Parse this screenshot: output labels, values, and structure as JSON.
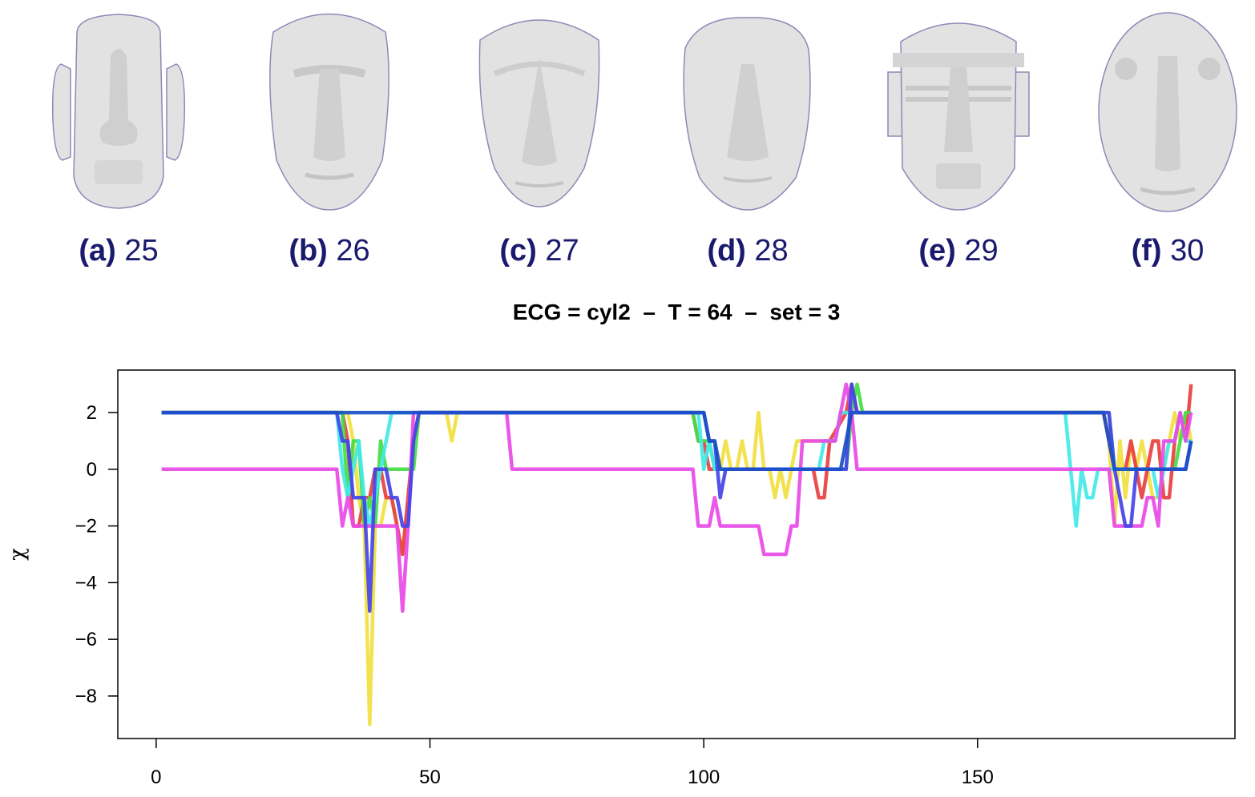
{
  "figure": {
    "faces": [
      {
        "letter": "(a)",
        "number": "25",
        "shape": "moai-ears"
      },
      {
        "letter": "(b)",
        "number": "26",
        "shape": "wide-brow"
      },
      {
        "letter": "(c)",
        "number": "27",
        "shape": "pointed-nose"
      },
      {
        "letter": "(d)",
        "number": "28",
        "shape": "rough-round"
      },
      {
        "letter": "(e)",
        "number": "29",
        "shape": "banded-ears"
      },
      {
        "letter": "(f)",
        "number": "30",
        "shape": "oval-knobs"
      }
    ],
    "face_color": "#e2e2e2",
    "caption_color": "#1a1a6e"
  },
  "chart_data": {
    "type": "line",
    "title": "ECG = cyl2  –  T = 64  –  set = 3",
    "xlabel": "",
    "ylabel": "χ",
    "xlim": [
      -7,
      197
    ],
    "ylim": [
      -9.5,
      3.5
    ],
    "xticks": [
      0,
      50,
      100,
      150
    ],
    "yticks": [
      2,
      0,
      -2,
      -4,
      -6,
      -8
    ],
    "xtick_labels": [
      "0",
      "50",
      "100",
      "150"
    ],
    "ytick_labels": [
      "2",
      "0",
      "−2",
      "−4",
      "−6",
      "−8"
    ],
    "grid": false,
    "legend": "none",
    "series": [
      {
        "color": "#f2e040",
        "points": [
          [
            1,
            2
          ],
          [
            34,
            2
          ],
          [
            35,
            2
          ],
          [
            36,
            1
          ],
          [
            37,
            -1
          ],
          [
            38,
            -2
          ],
          [
            39,
            -9
          ],
          [
            40,
            -2
          ],
          [
            41,
            -2
          ],
          [
            42,
            -1
          ],
          [
            43,
            -1
          ],
          [
            44,
            -2
          ],
          [
            45,
            -3
          ],
          [
            46,
            -1
          ],
          [
            47,
            1
          ],
          [
            48,
            2
          ],
          [
            52,
            2
          ],
          [
            53,
            2
          ],
          [
            54,
            1
          ],
          [
            55,
            2
          ],
          [
            100,
            2
          ],
          [
            101,
            1
          ],
          [
            102,
            1
          ],
          [
            103,
            0
          ],
          [
            104,
            1
          ],
          [
            105,
            0
          ],
          [
            106,
            0
          ],
          [
            107,
            1
          ],
          [
            108,
            0
          ],
          [
            109,
            0
          ],
          [
            110,
            2
          ],
          [
            111,
            0
          ],
          [
            112,
            0
          ],
          [
            113,
            -1
          ],
          [
            114,
            0
          ],
          [
            115,
            -1
          ],
          [
            116,
            0
          ],
          [
            117,
            1
          ],
          [
            124,
            1
          ],
          [
            125,
            2
          ],
          [
            126,
            2
          ],
          [
            127,
            2
          ],
          [
            128,
            2
          ],
          [
            129,
            2
          ],
          [
            173,
            2
          ],
          [
            174,
            1
          ],
          [
            175,
            -2
          ],
          [
            176,
            1
          ],
          [
            177,
            -1
          ],
          [
            178,
            1
          ],
          [
            179,
            0
          ],
          [
            180,
            1
          ],
          [
            181,
            0
          ],
          [
            182,
            -1
          ],
          [
            183,
            -1
          ],
          [
            184,
            0
          ],
          [
            185,
            1
          ],
          [
            186,
            2
          ],
          [
            187,
            1
          ],
          [
            188,
            2
          ],
          [
            189,
            1
          ]
        ]
      },
      {
        "color": "#e84040",
        "points": [
          [
            1,
            2
          ],
          [
            34,
            2
          ],
          [
            35,
            1
          ],
          [
            36,
            -2
          ],
          [
            37,
            -2
          ],
          [
            38,
            -1
          ],
          [
            39,
            -1
          ],
          [
            40,
            0
          ],
          [
            41,
            0
          ],
          [
            42,
            -1
          ],
          [
            43,
            -1
          ],
          [
            44,
            -2
          ],
          [
            45,
            -3
          ],
          [
            46,
            -1
          ],
          [
            47,
            1
          ],
          [
            48,
            2
          ],
          [
            98,
            2
          ],
          [
            99,
            1
          ],
          [
            100,
            1
          ],
          [
            101,
            0
          ],
          [
            102,
            0
          ],
          [
            103,
            0
          ],
          [
            120,
            0
          ],
          [
            121,
            -1
          ],
          [
            122,
            -1
          ],
          [
            123,
            1
          ],
          [
            126,
            2
          ],
          [
            127,
            3
          ],
          [
            128,
            2
          ],
          [
            129,
            2
          ],
          [
            173,
            2
          ],
          [
            174,
            1
          ],
          [
            175,
            0
          ],
          [
            176,
            0
          ],
          [
            177,
            0
          ],
          [
            178,
            1
          ],
          [
            179,
            0
          ],
          [
            180,
            -1
          ],
          [
            181,
            0
          ],
          [
            182,
            1
          ],
          [
            183,
            1
          ],
          [
            184,
            -1
          ],
          [
            185,
            -1
          ],
          [
            186,
            1
          ],
          [
            187,
            2
          ],
          [
            188,
            1
          ],
          [
            189,
            3
          ]
        ]
      },
      {
        "color": "#44dd44",
        "points": [
          [
            1,
            2
          ],
          [
            34,
            2
          ],
          [
            35,
            -1
          ],
          [
            36,
            1
          ],
          [
            37,
            1
          ],
          [
            38,
            -2
          ],
          [
            39,
            -1
          ],
          [
            40,
            -2
          ],
          [
            41,
            1
          ],
          [
            42,
            0
          ],
          [
            47,
            0
          ],
          [
            48,
            2
          ],
          [
            98,
            2
          ],
          [
            99,
            1
          ],
          [
            100,
            1
          ],
          [
            101,
            1
          ],
          [
            102,
            0
          ],
          [
            126,
            0
          ],
          [
            127,
            2
          ],
          [
            128,
            3
          ],
          [
            129,
            2
          ],
          [
            173,
            2
          ],
          [
            174,
            2
          ],
          [
            175,
            0
          ],
          [
            176,
            0
          ],
          [
            186,
            0
          ],
          [
            187,
            1
          ],
          [
            188,
            2
          ],
          [
            189,
            2
          ]
        ]
      },
      {
        "color": "#44e8e8",
        "points": [
          [
            1,
            2
          ],
          [
            33,
            2
          ],
          [
            34,
            0
          ],
          [
            35,
            -1
          ],
          [
            36,
            0
          ],
          [
            37,
            1
          ],
          [
            38,
            -1
          ],
          [
            39,
            -2
          ],
          [
            40,
            -1
          ],
          [
            41,
            0
          ],
          [
            42,
            1
          ],
          [
            43,
            2
          ],
          [
            48,
            2
          ],
          [
            98,
            2
          ],
          [
            99,
            2
          ],
          [
            100,
            0
          ],
          [
            101,
            1
          ],
          [
            102,
            0
          ],
          [
            103,
            0
          ],
          [
            120,
            0
          ],
          [
            121,
            0
          ],
          [
            122,
            1
          ],
          [
            124,
            1
          ],
          [
            125,
            2
          ],
          [
            126,
            2
          ],
          [
            127,
            2
          ],
          [
            128,
            2
          ],
          [
            166,
            2
          ],
          [
            167,
            0
          ],
          [
            168,
            -2
          ],
          [
            169,
            0
          ],
          [
            170,
            -1
          ],
          [
            171,
            -1
          ],
          [
            172,
            0
          ],
          [
            182,
            0
          ],
          [
            183,
            -1
          ],
          [
            184,
            0
          ],
          [
            185,
            1
          ],
          [
            186,
            1
          ],
          [
            187,
            2
          ],
          [
            188,
            1
          ],
          [
            189,
            1
          ]
        ]
      },
      {
        "color": "#e84ae8",
        "points": [
          [
            1,
            0
          ],
          [
            33,
            0
          ],
          [
            34,
            -2
          ],
          [
            35,
            -1
          ],
          [
            36,
            -2
          ],
          [
            37,
            -2
          ],
          [
            38,
            -2
          ],
          [
            43,
            -2
          ],
          [
            44,
            -2
          ],
          [
            45,
            -5
          ],
          [
            46,
            -2
          ],
          [
            47,
            2
          ],
          [
            64,
            2
          ],
          [
            65,
            0
          ],
          [
            98,
            0
          ],
          [
            99,
            -2
          ],
          [
            101,
            -2
          ],
          [
            102,
            -1
          ],
          [
            103,
            -2
          ],
          [
            110,
            -2
          ],
          [
            111,
            -3
          ],
          [
            115,
            -3
          ],
          [
            116,
            -2
          ],
          [
            117,
            -2
          ],
          [
            118,
            1
          ],
          [
            123,
            1
          ],
          [
            124,
            1
          ],
          [
            125,
            2
          ],
          [
            126,
            3
          ],
          [
            127,
            2
          ],
          [
            128,
            0
          ],
          [
            174,
            0
          ],
          [
            175,
            -2
          ],
          [
            180,
            -2
          ],
          [
            181,
            -1
          ],
          [
            182,
            -1
          ],
          [
            183,
            -2
          ],
          [
            184,
            1
          ],
          [
            185,
            1
          ],
          [
            186,
            1
          ],
          [
            187,
            2
          ],
          [
            188,
            1
          ],
          [
            189,
            2
          ]
        ]
      },
      {
        "color": "#4444e8",
        "points": [
          [
            1,
            2
          ],
          [
            33,
            2
          ],
          [
            34,
            1
          ],
          [
            35,
            1
          ],
          [
            36,
            -1
          ],
          [
            37,
            -1
          ],
          [
            38,
            -1
          ],
          [
            39,
            -5
          ],
          [
            40,
            0
          ],
          [
            42,
            0
          ],
          [
            43,
            -1
          ],
          [
            44,
            -1
          ],
          [
            45,
            -2
          ],
          [
            46,
            -2
          ],
          [
            47,
            1
          ],
          [
            48,
            2
          ],
          [
            100,
            2
          ],
          [
            101,
            1
          ],
          [
            102,
            1
          ],
          [
            103,
            -1
          ],
          [
            104,
            0
          ],
          [
            126,
            0
          ],
          [
            127,
            3
          ],
          [
            128,
            2
          ],
          [
            174,
            2
          ],
          [
            175,
            0
          ],
          [
            176,
            -1
          ],
          [
            177,
            -2
          ],
          [
            178,
            -2
          ],
          [
            179,
            0
          ],
          [
            186,
            0
          ],
          [
            187,
            0
          ],
          [
            188,
            0
          ],
          [
            189,
            1
          ]
        ]
      },
      {
        "color": "#1a50c8",
        "points": [
          [
            1,
            2
          ],
          [
            33,
            2
          ],
          [
            48,
            2
          ],
          [
            100,
            2
          ],
          [
            101,
            1
          ],
          [
            102,
            1
          ],
          [
            103,
            0
          ],
          [
            125,
            0
          ],
          [
            126,
            1
          ],
          [
            127,
            2
          ],
          [
            128,
            2
          ],
          [
            173,
            2
          ],
          [
            174,
            1
          ],
          [
            175,
            0
          ],
          [
            176,
            0
          ],
          [
            186,
            0
          ],
          [
            187,
            0
          ],
          [
            188,
            0
          ],
          [
            189,
            1
          ]
        ]
      }
    ]
  }
}
